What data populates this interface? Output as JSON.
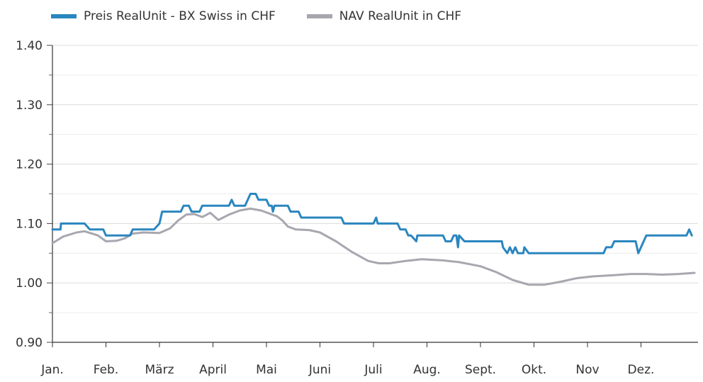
{
  "chart_data": {
    "type": "line",
    "title": "",
    "xlabel": "",
    "ylabel": "",
    "ylim": [
      0.9,
      1.4
    ],
    "y_ticks": [
      "0.90",
      "1.00",
      "1.10",
      "1.20",
      "1.30",
      "1.40"
    ],
    "months": [
      "Jan.",
      "Feb.",
      "März",
      "April",
      "Mai",
      "Juni",
      "Juli",
      "Aug.",
      "Sept.",
      "Okt.",
      "Nov",
      "Dez."
    ],
    "grid": "horizontal",
    "legend_position": "top-left",
    "series": [
      {
        "name": "Preis RealUnit - BX Swiss in CHF",
        "color": "#2a86bf",
        "points": [
          [
            0,
            1.09
          ],
          [
            0.15,
            1.09
          ],
          [
            0.16,
            1.1
          ],
          [
            0.6,
            1.1
          ],
          [
            0.7,
            1.09
          ],
          [
            0.95,
            1.09
          ],
          [
            1.0,
            1.08
          ],
          [
            1.45,
            1.08
          ],
          [
            1.5,
            1.09
          ],
          [
            1.9,
            1.09
          ],
          [
            2.0,
            1.1
          ],
          [
            2.05,
            1.12
          ],
          [
            2.4,
            1.12
          ],
          [
            2.45,
            1.13
          ],
          [
            2.55,
            1.13
          ],
          [
            2.6,
            1.12
          ],
          [
            2.75,
            1.12
          ],
          [
            2.8,
            1.13
          ],
          [
            3.3,
            1.13
          ],
          [
            3.35,
            1.14
          ],
          [
            3.4,
            1.13
          ],
          [
            3.6,
            1.13
          ],
          [
            3.7,
            1.15
          ],
          [
            3.8,
            1.15
          ],
          [
            3.85,
            1.14
          ],
          [
            4.0,
            1.14
          ],
          [
            4.05,
            1.13
          ],
          [
            4.1,
            1.13
          ],
          [
            4.12,
            1.12
          ],
          [
            4.15,
            1.13
          ],
          [
            4.4,
            1.13
          ],
          [
            4.45,
            1.12
          ],
          [
            4.6,
            1.12
          ],
          [
            4.65,
            1.11
          ],
          [
            5.4,
            1.11
          ],
          [
            5.45,
            1.1
          ],
          [
            6.0,
            1.1
          ],
          [
            6.05,
            1.11
          ],
          [
            6.08,
            1.1
          ],
          [
            6.45,
            1.1
          ],
          [
            6.5,
            1.09
          ],
          [
            6.6,
            1.09
          ],
          [
            6.65,
            1.08
          ],
          [
            6.7,
            1.08
          ],
          [
            6.8,
            1.07
          ],
          [
            6.82,
            1.08
          ],
          [
            7.3,
            1.08
          ],
          [
            7.35,
            1.07
          ],
          [
            7.45,
            1.07
          ],
          [
            7.5,
            1.08
          ],
          [
            7.55,
            1.08
          ],
          [
            7.58,
            1.06
          ],
          [
            7.6,
            1.08
          ],
          [
            7.7,
            1.07
          ],
          [
            8.4,
            1.07
          ],
          [
            8.42,
            1.06
          ],
          [
            8.5,
            1.05
          ],
          [
            8.55,
            1.06
          ],
          [
            8.6,
            1.05
          ],
          [
            8.65,
            1.06
          ],
          [
            8.7,
            1.05
          ],
          [
            8.8,
            1.05
          ],
          [
            8.82,
            1.06
          ],
          [
            8.9,
            1.05
          ],
          [
            10.3,
            1.05
          ],
          [
            10.35,
            1.06
          ],
          [
            10.45,
            1.06
          ],
          [
            10.5,
            1.07
          ],
          [
            10.9,
            1.07
          ],
          [
            10.95,
            1.05
          ],
          [
            11.0,
            1.06
          ],
          [
            11.1,
            1.08
          ],
          [
            11.85,
            1.08
          ],
          [
            11.9,
            1.09
          ],
          [
            11.95,
            1.08
          ]
        ]
      },
      {
        "name": "NAV RealUnit in CHF",
        "color": "#a7a7b0",
        "points": [
          [
            0,
            1.067
          ],
          [
            0.2,
            1.078
          ],
          [
            0.45,
            1.085
          ],
          [
            0.6,
            1.087
          ],
          [
            0.85,
            1.08
          ],
          [
            1.0,
            1.07
          ],
          [
            1.2,
            1.071
          ],
          [
            1.35,
            1.075
          ],
          [
            1.5,
            1.083
          ],
          [
            1.7,
            1.085
          ],
          [
            2.0,
            1.084
          ],
          [
            2.2,
            1.092
          ],
          [
            2.35,
            1.105
          ],
          [
            2.5,
            1.115
          ],
          [
            2.65,
            1.116
          ],
          [
            2.8,
            1.111
          ],
          [
            2.95,
            1.118
          ],
          [
            3.1,
            1.106
          ],
          [
            3.3,
            1.115
          ],
          [
            3.5,
            1.122
          ],
          [
            3.7,
            1.125
          ],
          [
            3.9,
            1.122
          ],
          [
            4.2,
            1.112
          ],
          [
            4.3,
            1.105
          ],
          [
            4.4,
            1.095
          ],
          [
            4.55,
            1.09
          ],
          [
            4.8,
            1.089
          ],
          [
            5.0,
            1.085
          ],
          [
            5.3,
            1.07
          ],
          [
            5.6,
            1.052
          ],
          [
            5.9,
            1.037
          ],
          [
            6.1,
            1.033
          ],
          [
            6.3,
            1.033
          ],
          [
            6.6,
            1.037
          ],
          [
            6.9,
            1.04
          ],
          [
            7.3,
            1.038
          ],
          [
            7.6,
            1.035
          ],
          [
            8.0,
            1.028
          ],
          [
            8.3,
            1.018
          ],
          [
            8.6,
            1.005
          ],
          [
            8.9,
            0.997
          ],
          [
            9.2,
            0.997
          ],
          [
            9.5,
            1.002
          ],
          [
            9.8,
            1.008
          ],
          [
            10.1,
            1.011
          ],
          [
            10.5,
            1.013
          ],
          [
            10.8,
            1.015
          ],
          [
            11.1,
            1.015
          ],
          [
            11.4,
            1.014
          ],
          [
            11.7,
            1.015
          ],
          [
            12.0,
            1.017
          ]
        ]
      }
    ]
  }
}
